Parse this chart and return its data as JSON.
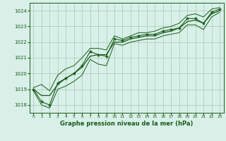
{
  "title": "Graphe pression niveau de la mer (hPa)",
  "hours": [
    0,
    1,
    2,
    3,
    4,
    5,
    6,
    7,
    8,
    9,
    10,
    11,
    12,
    13,
    14,
    15,
    16,
    17,
    18,
    19,
    20,
    21,
    22,
    23
  ],
  "pressure_main": [
    1019.0,
    1018.2,
    1018.0,
    1019.4,
    1019.7,
    1020.0,
    1020.5,
    1021.4,
    1021.2,
    1021.1,
    1022.2,
    1022.1,
    1022.3,
    1022.4,
    1022.5,
    1022.5,
    1022.7,
    1022.8,
    1022.9,
    1023.5,
    1023.5,
    1023.2,
    1023.9,
    1024.1
  ],
  "pressure_high": [
    1019.1,
    1019.3,
    1018.9,
    1019.9,
    1020.3,
    1020.5,
    1021.0,
    1021.6,
    1021.6,
    1021.5,
    1022.4,
    1022.2,
    1022.4,
    1022.6,
    1022.6,
    1022.7,
    1022.9,
    1023.0,
    1023.2,
    1023.7,
    1023.8,
    1023.6,
    1024.1,
    1024.2
  ],
  "pressure_low": [
    1018.9,
    1018.0,
    1017.8,
    1019.0,
    1019.2,
    1019.5,
    1019.9,
    1020.9,
    1020.6,
    1020.5,
    1021.9,
    1021.8,
    1022.0,
    1022.1,
    1022.2,
    1022.2,
    1022.4,
    1022.5,
    1022.6,
    1023.1,
    1023.1,
    1022.8,
    1023.6,
    1023.9
  ],
  "pressure_trend": [
    1019.0,
    1018.6,
    1018.6,
    1019.3,
    1019.7,
    1020.0,
    1020.4,
    1021.1,
    1021.2,
    1021.2,
    1022.0,
    1022.0,
    1022.2,
    1022.3,
    1022.4,
    1022.4,
    1022.6,
    1022.7,
    1022.9,
    1023.3,
    1023.4,
    1023.2,
    1023.8,
    1024.0
  ],
  "line_color": "#1a5c1a",
  "bg_color": "#d8f0e8",
  "grid_color": "#a8c8b8",
  "ylim_min": 1017.5,
  "ylim_max": 1024.5,
  "yticks": [
    1018,
    1019,
    1020,
    1021,
    1022,
    1023,
    1024
  ],
  "xticks": [
    0,
    1,
    2,
    3,
    4,
    5,
    6,
    7,
    8,
    9,
    10,
    11,
    12,
    13,
    14,
    15,
    16,
    17,
    18,
    19,
    20,
    21,
    22,
    23
  ]
}
